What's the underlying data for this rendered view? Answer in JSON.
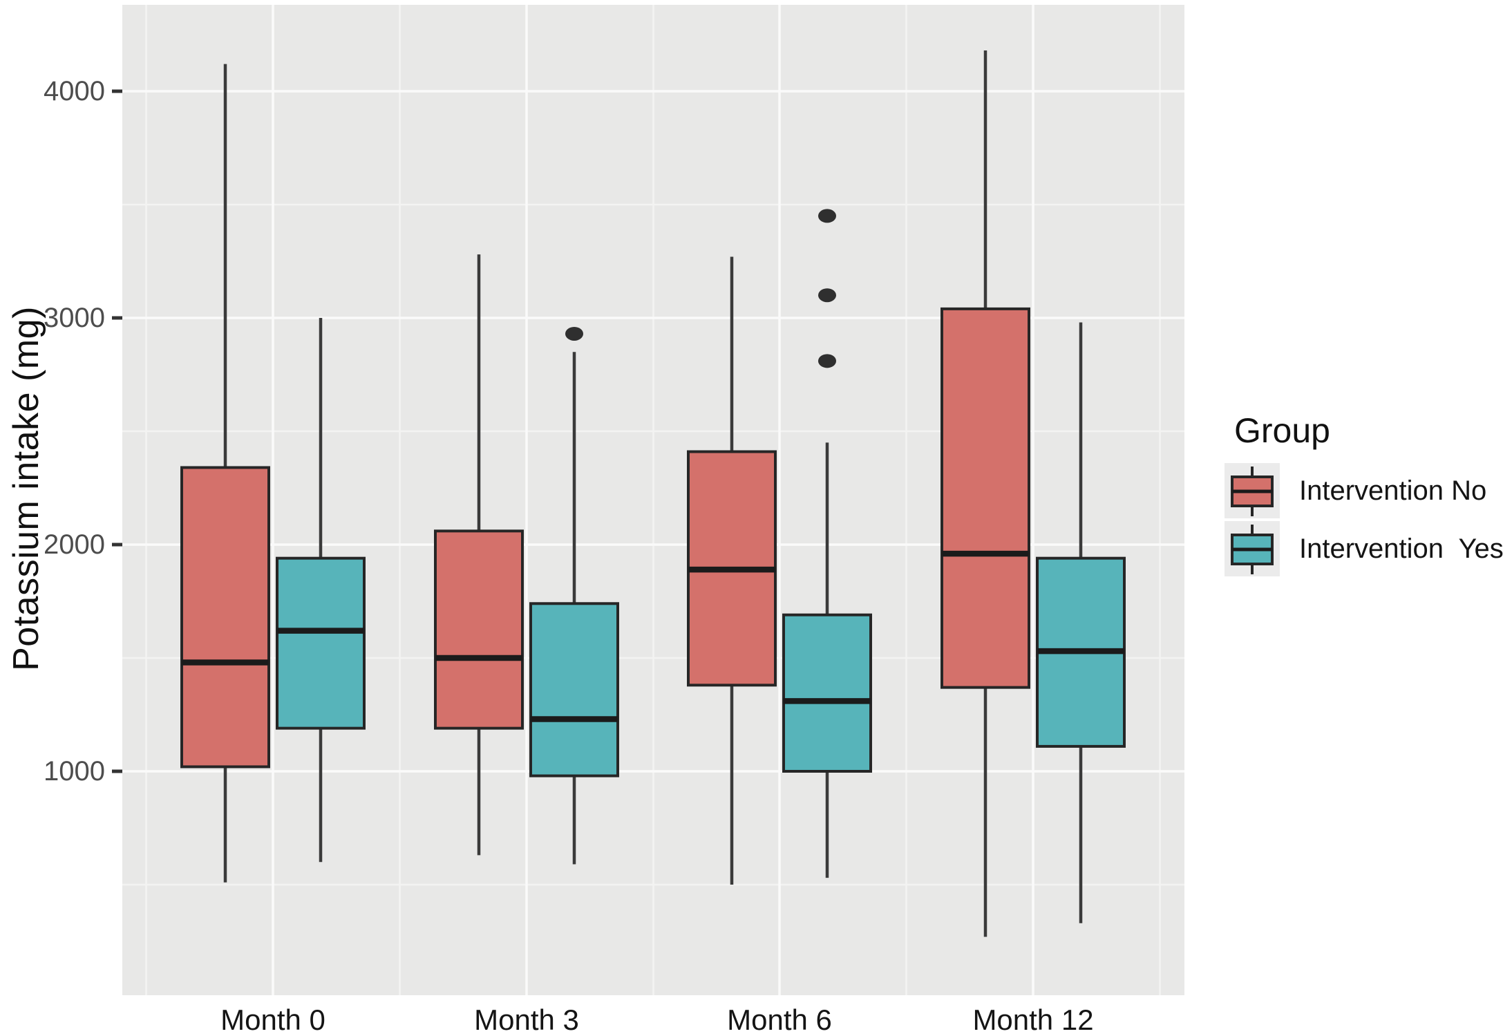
{
  "figure": {
    "ylabel": "Potassium intake (mg)"
  },
  "chart_data": {
    "type": "boxplot",
    "title": "",
    "xlabel": "",
    "ylabel": "Potassium intake (mg)",
    "categories": [
      "Month 0",
      "Month 3",
      "Month 6",
      "Month 12"
    ],
    "y_axis": {
      "ticks": [
        1000,
        2000,
        3000,
        4000
      ],
      "minor_ticks": [
        500,
        1500,
        2500,
        3500
      ],
      "range": [
        30,
        4380
      ],
      "grid": true
    },
    "legend": {
      "title": "Group",
      "position": "right",
      "items": [
        {
          "label": "Intervention No",
          "color": "#d4716b"
        },
        {
          "label": "Intervention  Yes",
          "color": "#57b4ba"
        }
      ]
    },
    "style": {
      "panel_background": "#e8e8e7",
      "grid_major_color": "#fafafa",
      "grid_minor_color": "#f3f3f2",
      "box_border_color": "#262626",
      "median_color": "#1b1b1b",
      "whisker_color": "#3a3a3a",
      "outlier_color": "#2f2f2f",
      "tick_label_color": "#4d4d4d",
      "axis_label_color": "#141414"
    },
    "series": [
      {
        "name": "Intervention No",
        "color": "#d4716b",
        "boxes": [
          {
            "category": "Month 0",
            "whisker_low": 510,
            "q1": 1020,
            "median": 1480,
            "q3": 2340,
            "whisker_high": 4120,
            "outliers": []
          },
          {
            "category": "Month 3",
            "whisker_low": 630,
            "q1": 1190,
            "median": 1500,
            "q3": 2060,
            "whisker_high": 3280,
            "outliers": []
          },
          {
            "category": "Month 6",
            "whisker_low": 500,
            "q1": 1380,
            "median": 1890,
            "q3": 2410,
            "whisker_high": 3270,
            "outliers": []
          },
          {
            "category": "Month 12",
            "whisker_low": 270,
            "q1": 1370,
            "median": 1960,
            "q3": 3040,
            "whisker_high": 4180,
            "outliers": []
          }
        ]
      },
      {
        "name": "Intervention Yes",
        "color": "#57b4ba",
        "boxes": [
          {
            "category": "Month 0",
            "whisker_low": 600,
            "q1": 1190,
            "median": 1620,
            "q3": 1940,
            "whisker_high": 3000,
            "outliers": []
          },
          {
            "category": "Month 3",
            "whisker_low": 590,
            "q1": 980,
            "median": 1230,
            "q3": 1740,
            "whisker_high": 2850,
            "outliers": [
              2930
            ]
          },
          {
            "category": "Month 6",
            "whisker_low": 530,
            "q1": 1000,
            "median": 1310,
            "q3": 1690,
            "whisker_high": 2450,
            "outliers": [
              2810,
              3100,
              3450
            ]
          },
          {
            "category": "Month 12",
            "whisker_low": 330,
            "q1": 1110,
            "median": 1530,
            "q3": 1940,
            "whisker_high": 2980,
            "outliers": []
          }
        ]
      }
    ]
  }
}
